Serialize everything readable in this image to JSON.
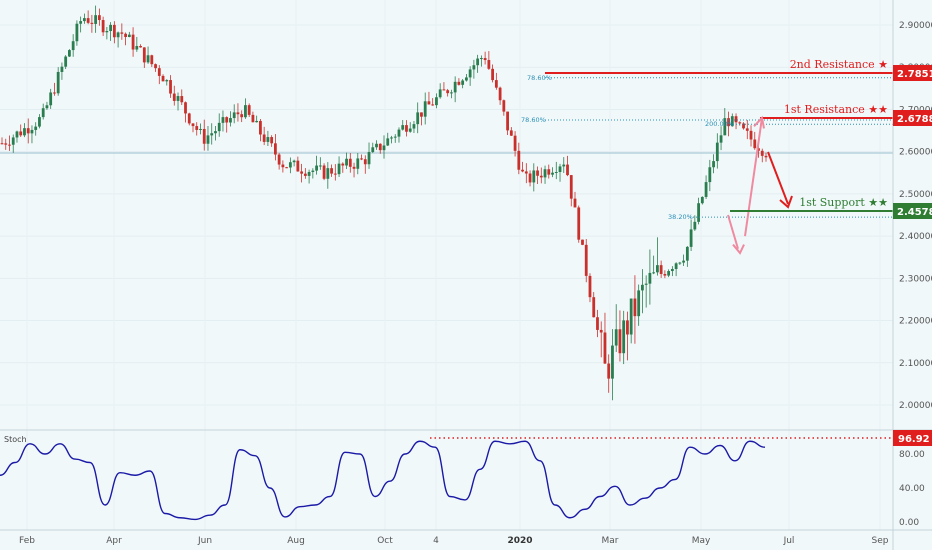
{
  "chart_data": {
    "type": "candlestick",
    "price_axis": {
      "range": [
        1.94,
        2.97
      ],
      "ticks": [
        "2.90000",
        "2.80000",
        "2.70000",
        "2.60000",
        "2.50000",
        "2.40000",
        "2.30000",
        "2.20000",
        "2.10000",
        "2.00000"
      ],
      "tick_values": [
        2.9,
        2.8,
        2.7,
        2.6,
        2.5,
        2.4,
        2.3,
        2.2,
        2.1,
        2.0
      ]
    },
    "time_axis": {
      "labels": [
        "Feb",
        "Apr",
        "Jun",
        "Aug",
        "Oct",
        "4",
        "2020",
        "Mar",
        "May",
        "Jul",
        "Sep"
      ],
      "bold": [
        "2020"
      ]
    },
    "price_path": [
      [
        "Jan 2019",
        2.62
      ],
      [
        "Feb 2019",
        2.68
      ],
      [
        "Mar 2019",
        2.92
      ],
      [
        "Apr 2019",
        2.88
      ],
      [
        "May 2019",
        2.78
      ],
      [
        "Jun 2019",
        2.63
      ],
      [
        "Jul 2019",
        2.7
      ],
      [
        "Aug 2019",
        2.57
      ],
      [
        "Sep 2019",
        2.55
      ],
      [
        "Oct 2019",
        2.58
      ],
      [
        "Nov 2019",
        2.66
      ],
      [
        "Dec 2019",
        2.74
      ],
      [
        "Jan 2020",
        2.83
      ],
      [
        "Feb 2020",
        2.53
      ],
      [
        "Mar 2020",
        2.58
      ],
      [
        "late Mar 2020",
        2.08
      ],
      [
        "Apr 2020",
        2.28
      ],
      [
        "May 2020",
        2.36
      ],
      [
        "Jun 2020",
        2.68
      ],
      [
        "Jun 2020 last",
        2.6
      ]
    ],
    "current_price": 2.598,
    "levels": [
      {
        "name": "2nd Resistance ★",
        "value": "2.78511",
        "color": "#e01e1e"
      },
      {
        "name": "1st Resistance ★★",
        "value": "2.67885",
        "color": "#e01e1e"
      },
      {
        "name": "1st Support ★★",
        "value": "2.45787",
        "color": "#2e7d32"
      }
    ],
    "fib_labels": [
      "78.60%",
      "78.60%",
      "200.00%",
      "38.20%"
    ],
    "stochastic": {
      "title": "Stoch",
      "axis_ticks": [
        "80.00",
        "40.00",
        "0.00"
      ],
      "axis_range": [
        0,
        100
      ],
      "threshold_value": "96.92",
      "line_color": "#1a1aa6"
    },
    "colors": {
      "up": "#2a7d4f",
      "down": "#c9302c",
      "resistance": "#e01e1e",
      "support": "#2e7d32",
      "fib": "#2a8fb5"
    }
  }
}
